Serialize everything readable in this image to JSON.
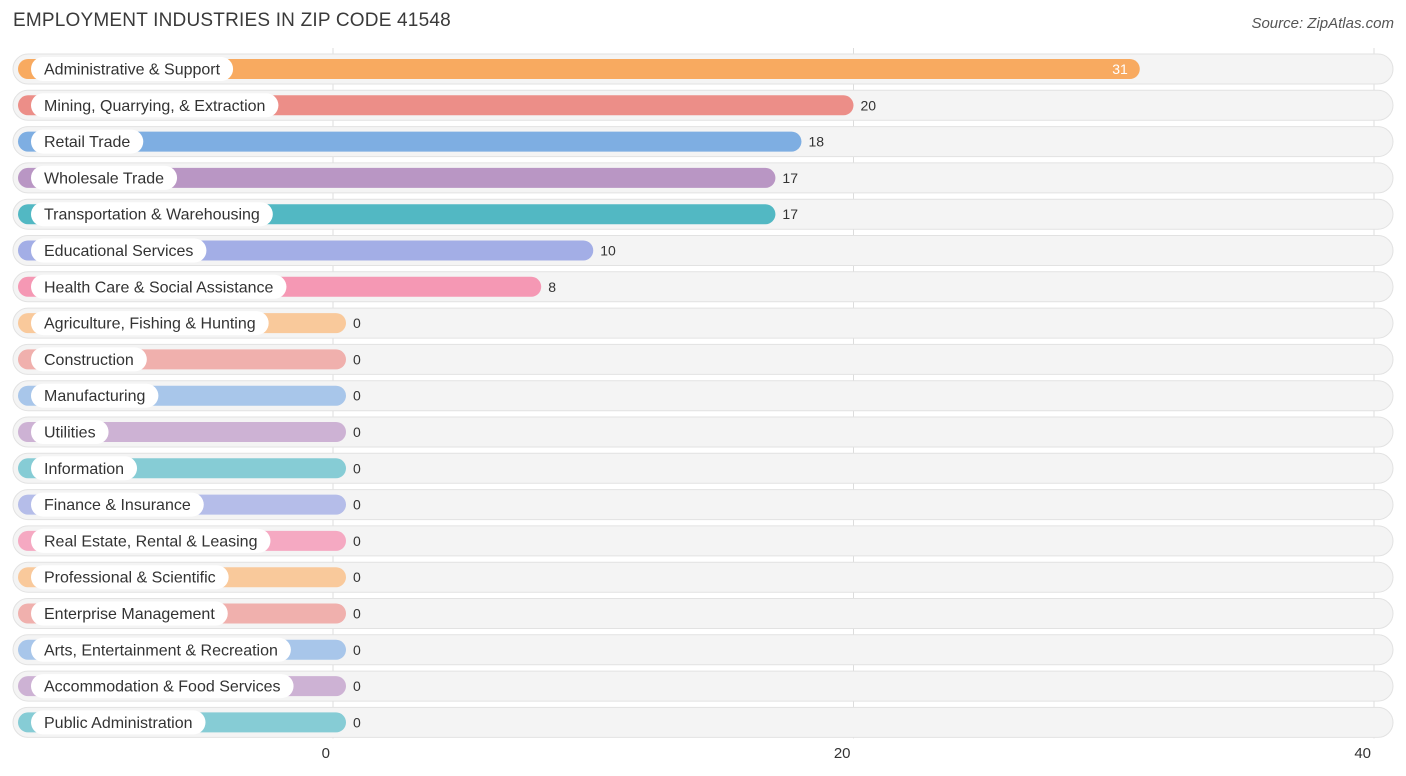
{
  "header": {
    "title": "EMPLOYMENT INDUSTRIES IN ZIP CODE 41548",
    "source": "Source: ZipAtlas.com"
  },
  "chart_data": {
    "type": "bar",
    "orientation": "horizontal",
    "title": "EMPLOYMENT INDUSTRIES IN ZIP CODE 41548",
    "xlabel": "",
    "ylabel": "",
    "xlim": [
      0,
      40
    ],
    "ticks": [
      0,
      20,
      40
    ],
    "grid": true,
    "categories": [
      "Administrative & Support",
      "Mining, Quarrying, & Extraction",
      "Retail Trade",
      "Wholesale Trade",
      "Transportation & Warehousing",
      "Educational Services",
      "Health Care & Social Assistance",
      "Agriculture, Fishing & Hunting",
      "Construction",
      "Manufacturing",
      "Utilities",
      "Information",
      "Finance & Insurance",
      "Real Estate, Rental & Leasing",
      "Professional & Scientific",
      "Enterprise Management",
      "Arts, Entertainment & Recreation",
      "Accommodation & Food Services",
      "Public Administration"
    ],
    "values": [
      31,
      20,
      18,
      17,
      17,
      10,
      8,
      0,
      0,
      0,
      0,
      0,
      0,
      0,
      0,
      0,
      0,
      0,
      0
    ],
    "colors": [
      "#f8aa60",
      "#ec8e88",
      "#7eaee2",
      "#b996c4",
      "#52b8c3",
      "#a3aee6",
      "#f598b4",
      "#f9c99b",
      "#f0b0ad",
      "#a8c6ea",
      "#cdb2d4",
      "#86ccd5",
      "#b5bde9",
      "#f5a9c2",
      "#f9c99b",
      "#f0b0ad",
      "#a8c6ea",
      "#cdb2d4",
      "#86ccd5"
    ]
  }
}
